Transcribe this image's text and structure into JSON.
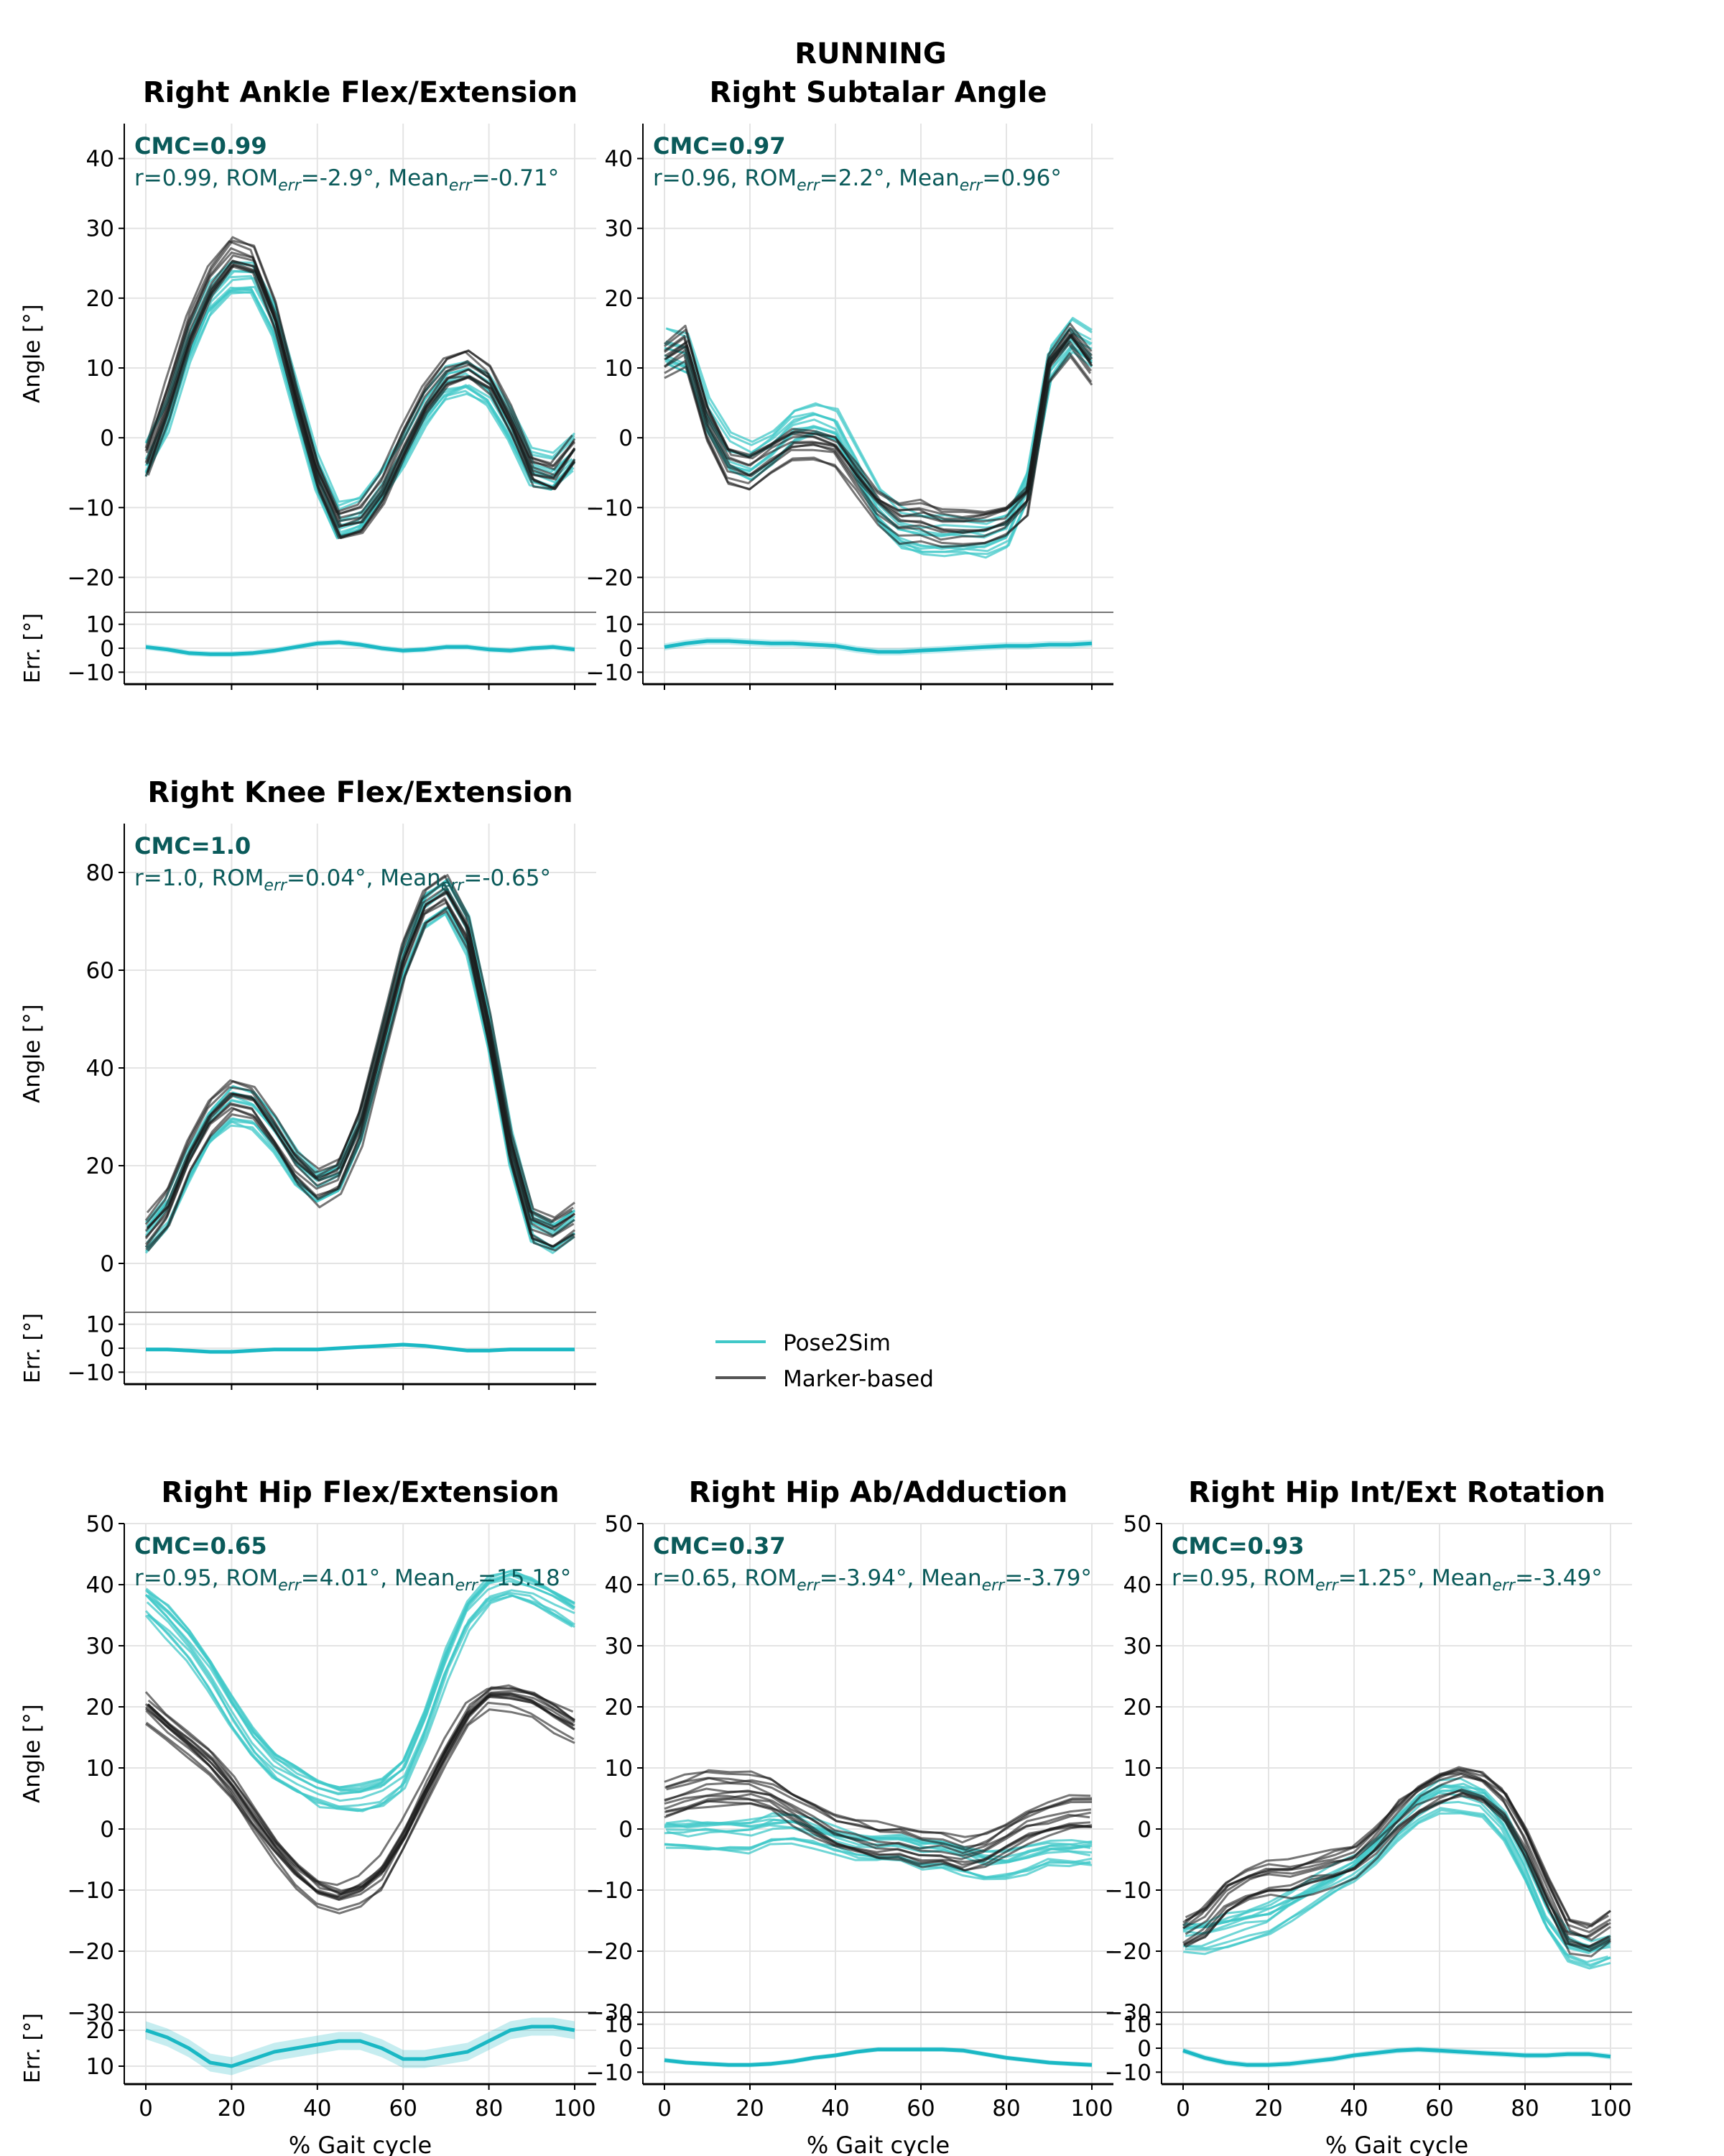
{
  "figure": {
    "suptitle": "RUNNING",
    "x_axis_label": "% Gait cycle",
    "angle_label": "Angle [°]",
    "error_label": "Err. [°]",
    "legend": [
      {
        "label": "Pose2Sim",
        "color": "#40c8c8"
      },
      {
        "label": "Marker-based",
        "color": "#555555"
      }
    ],
    "colors": {
      "pose2sim": "#40c8c8",
      "marker": "#1a1a1a",
      "error": "#1ab8c4",
      "stats": "#0a5a5a"
    }
  },
  "chart_data": [
    {
      "id": "ankle",
      "type": "line",
      "title": "Right Ankle Flex/Extension",
      "cmc": "CMC=0.99",
      "stats": {
        "r": "r=0.99, ",
        "rom": "-2.9°",
        "mean": "-0.71°"
      },
      "x": [
        0,
        5,
        10,
        15,
        20,
        25,
        30,
        35,
        40,
        45,
        50,
        55,
        60,
        65,
        70,
        75,
        80,
        85,
        90,
        95,
        100
      ],
      "ylim": [
        -25,
        45
      ],
      "yticks": [
        -20,
        -10,
        0,
        10,
        20,
        30,
        40
      ],
      "err_ylim": [
        -15,
        15
      ],
      "err_yticks": [
        -10,
        0,
        10
      ],
      "series": [
        {
          "group": "marker",
          "values": [
            -4,
            5,
            15,
            22,
            26,
            25,
            17,
            5,
            -6,
            -13,
            -12,
            -8,
            -1,
            5,
            9,
            10,
            8,
            2,
            -5,
            -6,
            -2
          ]
        },
        {
          "group": "pose2sim",
          "values": [
            -3,
            3,
            13,
            20,
            23,
            23,
            17,
            6,
            -5,
            -12,
            -11,
            -7,
            -2,
            4,
            8,
            9,
            7,
            2,
            -4,
            -5,
            -2
          ]
        }
      ],
      "error": {
        "values": [
          0.5,
          -0.5,
          -2,
          -2.5,
          -2.5,
          -2,
          -1,
          0.5,
          2,
          2.5,
          1.5,
          0,
          -1,
          -0.5,
          0.5,
          0.5,
          -0.5,
          -1,
          0,
          0.5,
          -0.5
        ],
        "band": 1.2
      }
    },
    {
      "id": "subtalar",
      "type": "line",
      "title": "Right Subtalar Angle",
      "cmc": "CMC=0.97",
      "stats": {
        "r": "r=0.96, ",
        "rom": "2.2°",
        "mean": "0.96°"
      },
      "x": [
        0,
        5,
        10,
        15,
        20,
        25,
        30,
        35,
        40,
        45,
        50,
        55,
        60,
        65,
        70,
        75,
        80,
        85,
        90,
        95,
        100
      ],
      "ylim": [
        -25,
        45
      ],
      "yticks": [
        -20,
        -10,
        0,
        10,
        20,
        30,
        40
      ],
      "err_ylim": [
        -15,
        15
      ],
      "err_yticks": [
        -10,
        0,
        10
      ],
      "series": [
        {
          "group": "marker",
          "values": [
            11,
            13,
            2,
            -4,
            -5,
            -3,
            -1,
            -1,
            -2,
            -6,
            -10,
            -12,
            -12,
            -13,
            -13,
            -13,
            -12,
            -9,
            10,
            14,
            10
          ]
        },
        {
          "group": "pose2sim",
          "values": [
            13,
            12,
            3,
            -2,
            -3,
            -1,
            2,
            3,
            2,
            -4,
            -10,
            -13,
            -14,
            -14,
            -14,
            -14,
            -13,
            -6,
            11,
            15,
            13
          ]
        }
      ],
      "error": {
        "values": [
          0.5,
          2,
          3,
          3,
          2.5,
          2,
          2,
          1.5,
          1,
          -0.5,
          -1.5,
          -1.5,
          -1,
          -0.5,
          0,
          0.5,
          1,
          1,
          1.5,
          1.5,
          2
        ],
        "band": 1.5
      }
    },
    {
      "id": "knee",
      "type": "line",
      "title": "Right Knee Flex/Extension",
      "cmc": "CMC=1.0",
      "stats": {
        "r": "r=1.0, ",
        "rom": "0.04°",
        "mean": "-0.65°"
      },
      "x": [
        0,
        5,
        10,
        15,
        20,
        25,
        30,
        35,
        40,
        45,
        50,
        55,
        60,
        65,
        70,
        75,
        80,
        85,
        90,
        95,
        100
      ],
      "ylim": [
        -10,
        90
      ],
      "yticks": [
        0,
        20,
        40,
        60,
        80
      ],
      "err_ylim": [
        -15,
        15
      ],
      "err_yticks": [
        -10,
        0,
        10
      ],
      "series": [
        {
          "group": "marker",
          "values": [
            6,
            11,
            22,
            30,
            34,
            33,
            27,
            20,
            16,
            18,
            28,
            45,
            62,
            73,
            76,
            68,
            48,
            24,
            8,
            6,
            9
          ]
        },
        {
          "group": "pose2sim",
          "values": [
            5,
            10,
            20,
            28,
            32,
            31,
            26,
            19,
            15,
            17,
            27,
            44,
            61,
            72,
            75,
            67,
            47,
            23,
            7,
            5,
            8
          ]
        }
      ],
      "error": {
        "values": [
          -0.5,
          -0.5,
          -1,
          -1.5,
          -1.5,
          -1,
          -0.5,
          -0.5,
          -0.5,
          0,
          0.5,
          1,
          1.5,
          1,
          0,
          -1,
          -1,
          -0.5,
          -0.5,
          -0.5,
          -0.5
        ],
        "band": 0.8
      }
    },
    {
      "id": "hipflex",
      "type": "line",
      "title": "Right Hip Flex/Extension",
      "cmc": "CMC=0.65",
      "stats": {
        "r": "r=0.95, ",
        "rom": "4.01°",
        "mean": "15.18°"
      },
      "x": [
        0,
        5,
        10,
        15,
        20,
        25,
        30,
        35,
        40,
        45,
        50,
        55,
        60,
        65,
        70,
        75,
        80,
        85,
        90,
        95,
        100
      ],
      "ylim": [
        -30,
        50
      ],
      "yticks": [
        -30,
        -20,
        -10,
        0,
        10,
        20,
        30,
        40,
        50
      ],
      "err_ylim": [
        5,
        25
      ],
      "err_yticks": [
        10,
        20
      ],
      "series": [
        {
          "group": "marker",
          "values": [
            19,
            16,
            13,
            10,
            6,
            1,
            -4,
            -8,
            -11,
            -12,
            -11,
            -8,
            -2,
            5,
            12,
            18,
            21,
            21,
            20,
            18,
            16
          ]
        },
        {
          "group": "pose2sim",
          "values": [
            37,
            34,
            30,
            25,
            19,
            14,
            10,
            8,
            6,
            5,
            5,
            6,
            9,
            17,
            27,
            35,
            39,
            40,
            39,
            37,
            35
          ]
        }
      ],
      "error": {
        "values": [
          20,
          18,
          15,
          11,
          10,
          12,
          14,
          15,
          16,
          17,
          17,
          15,
          12,
          12,
          13,
          14,
          17,
          20,
          21,
          21,
          20
        ],
        "band": 2.5
      }
    },
    {
      "id": "hipab",
      "type": "line",
      "title": "Right Hip Ab/Adduction",
      "cmc": "CMC=0.37",
      "stats": {
        "r": "r=0.65, ",
        "rom": "-3.94°",
        "mean": "-3.79°"
      },
      "x": [
        0,
        5,
        10,
        15,
        20,
        25,
        30,
        35,
        40,
        45,
        50,
        55,
        60,
        65,
        70,
        75,
        80,
        85,
        90,
        95,
        100
      ],
      "ylim": [
        -30,
        50
      ],
      "yticks": [
        -30,
        -20,
        -10,
        0,
        10,
        20,
        30,
        40,
        50
      ],
      "err_ylim": [
        -15,
        15
      ],
      "err_yticks": [
        -10,
        0,
        10
      ],
      "series": [
        {
          "group": "marker",
          "values": [
            5,
            6,
            7,
            7,
            7,
            6,
            4,
            2,
            0,
            -1,
            -2,
            -2,
            -3,
            -3,
            -4,
            -3,
            -1,
            1,
            2,
            3,
            3
          ]
        },
        {
          "group": "pose2sim",
          "values": [
            -1,
            -1,
            -1,
            -1,
            -1,
            0,
            0,
            -1,
            -2,
            -3,
            -3,
            -3,
            -4,
            -4,
            -5,
            -6,
            -6,
            -5,
            -4,
            -4,
            -4
          ]
        }
      ],
      "error": {
        "values": [
          -5,
          -6,
          -6.5,
          -7,
          -7,
          -6.5,
          -5.5,
          -4,
          -3,
          -1.5,
          -0.5,
          -0.5,
          -0.5,
          -0.5,
          -1,
          -2.5,
          -4,
          -5,
          -6,
          -6.5,
          -7
        ],
        "band": 1
      }
    },
    {
      "id": "hiprot",
      "type": "line",
      "title": "Right Hip Int/Ext Rotation",
      "cmc": "CMC=0.93",
      "stats": {
        "r": "r=0.95, ",
        "rom": "1.25°",
        "mean": "-3.49°"
      },
      "x": [
        0,
        5,
        10,
        15,
        20,
        25,
        30,
        35,
        40,
        45,
        50,
        55,
        60,
        65,
        70,
        75,
        80,
        85,
        90,
        95,
        100
      ],
      "ylim": [
        -30,
        50
      ],
      "yticks": [
        -30,
        -20,
        -10,
        0,
        10,
        20,
        30,
        40,
        50
      ],
      "err_ylim": [
        -15,
        15
      ],
      "err_yticks": [
        -10,
        0,
        10
      ],
      "series": [
        {
          "group": "marker",
          "values": [
            -17,
            -15,
            -11,
            -9,
            -8,
            -8,
            -7,
            -6,
            -5,
            -2,
            2,
            5,
            7,
            8,
            7,
            4,
            -2,
            -10,
            -17,
            -18,
            -16
          ]
        },
        {
          "group": "pose2sim",
          "values": [
            -18,
            -18,
            -17,
            -16,
            -15,
            -13,
            -11,
            -9,
            -7,
            -4,
            0,
            3,
            5,
            5,
            4,
            0,
            -7,
            -15,
            -20,
            -21,
            -20
          ]
        }
      ],
      "error": {
        "values": [
          -1,
          -4,
          -6,
          -7,
          -7,
          -6.5,
          -5.5,
          -4.5,
          -3,
          -2,
          -1,
          -0.5,
          -1,
          -1.5,
          -2,
          -2.5,
          -3,
          -3,
          -2.5,
          -2.5,
          -3.5
        ],
        "band": 1.2
      }
    }
  ]
}
